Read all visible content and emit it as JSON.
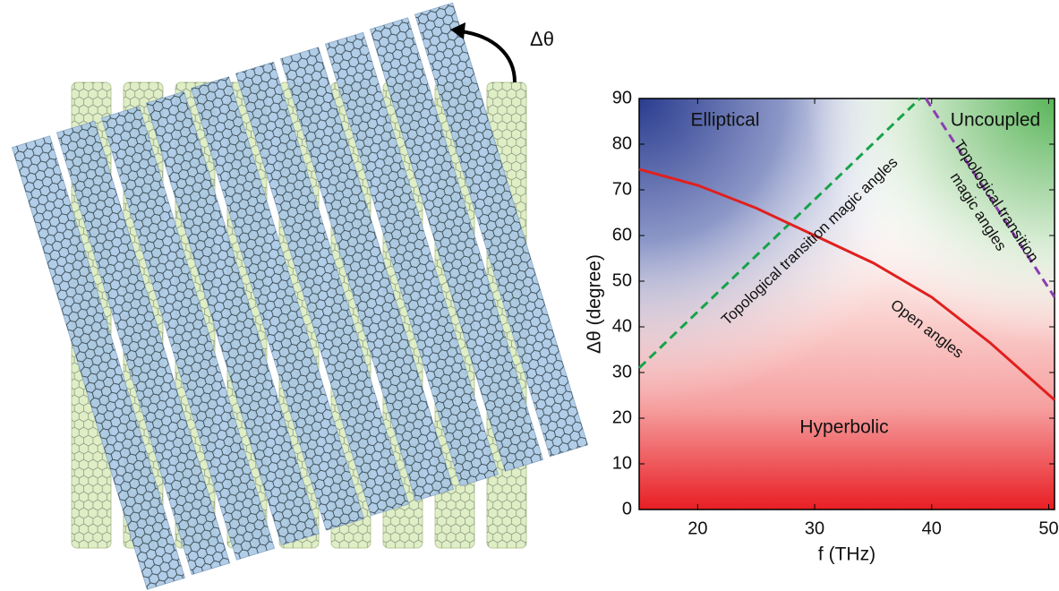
{
  "chart_data": {
    "type": "line",
    "xlabel": "f (THz)",
    "ylabel": "Δθ (degree)",
    "illustration_label": "Δθ",
    "regions": [
      "Elliptical",
      "Uncoupled",
      "Hyperbolic"
    ],
    "xlim": [
      15,
      50.5
    ],
    "ylim": [
      0,
      90
    ],
    "xticks": [
      20,
      30,
      40,
      50
    ],
    "yticks": [
      0,
      10,
      20,
      30,
      40,
      50,
      60,
      70,
      80,
      90
    ],
    "series": [
      {
        "name": "Topological transition magic angles",
        "color": "#17a34a",
        "dashed": true,
        "x": [
          15,
          39
        ],
        "values": [
          31,
          90
        ]
      },
      {
        "name": "Open angles",
        "color": "#e0201e",
        "dashed": false,
        "x": [
          15,
          20,
          25,
          30,
          35,
          40,
          45,
          50.5
        ],
        "values": [
          74.5,
          71,
          66,
          60,
          54,
          46.5,
          36.5,
          24
        ]
      },
      {
        "label_lines": [
          "Topological transition",
          "magic angles"
        ],
        "color": "#8a3fb0",
        "dashed": true,
        "x": [
          39.5,
          50.5
        ],
        "values": [
          90,
          46.5
        ]
      }
    ]
  }
}
